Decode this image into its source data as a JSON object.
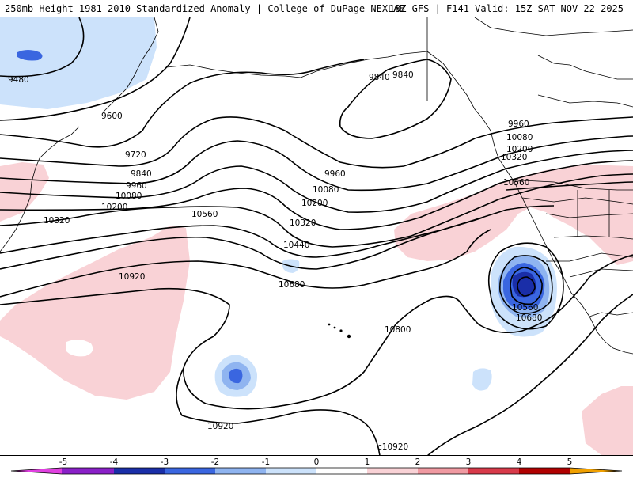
{
  "header": {
    "left_title": "250mb Height 1981-2010 Standardized Anomaly | College of DuPage NEXLAB",
    "right_title": "18Z GFS | F141 Valid: 15Z SAT NOV 22 2025"
  },
  "contour_labels": {
    "h9480": "9480",
    "h9600": "9600",
    "h9720": "9720",
    "h9840": "9840",
    "h9960": "9960",
    "h10080": "10080",
    "h10200": "10200",
    "h10320": "10320",
    "h10440": "10440",
    "h10560": "10560",
    "h10680": "10680",
    "h10800": "10800",
    "h10920": "10920",
    "h10920_bottom": "c10920"
  },
  "colorbar": {
    "ticks": [
      "-5",
      "-4",
      "-3",
      "-2",
      "-1",
      "0",
      "1",
      "2",
      "3",
      "4",
      "5"
    ],
    "colors": {
      "neg5": "#e040e0",
      "neg4": "#8a20c8",
      "neg3": "#1a2ea8",
      "neg2": "#3a66e0",
      "neg1": "#8fb4f0",
      "neg0": "#cce2fb",
      "pos0": "#ffffff",
      "pos1": "#f9d2d6",
      "pos2": "#f09aa2",
      "pos3": "#d83a4a",
      "pos4": "#b00000",
      "pos5": "#f0a000"
    }
  },
  "colors": {
    "positive_anomaly": "#f9d2d6",
    "negative_anomaly_light": "#cce2fb",
    "negative_anomaly_mid": "#8fb4f0",
    "negative_anomaly_strong": "#3a66e0",
    "negative_anomaly_core": "#1a2ea8"
  }
}
